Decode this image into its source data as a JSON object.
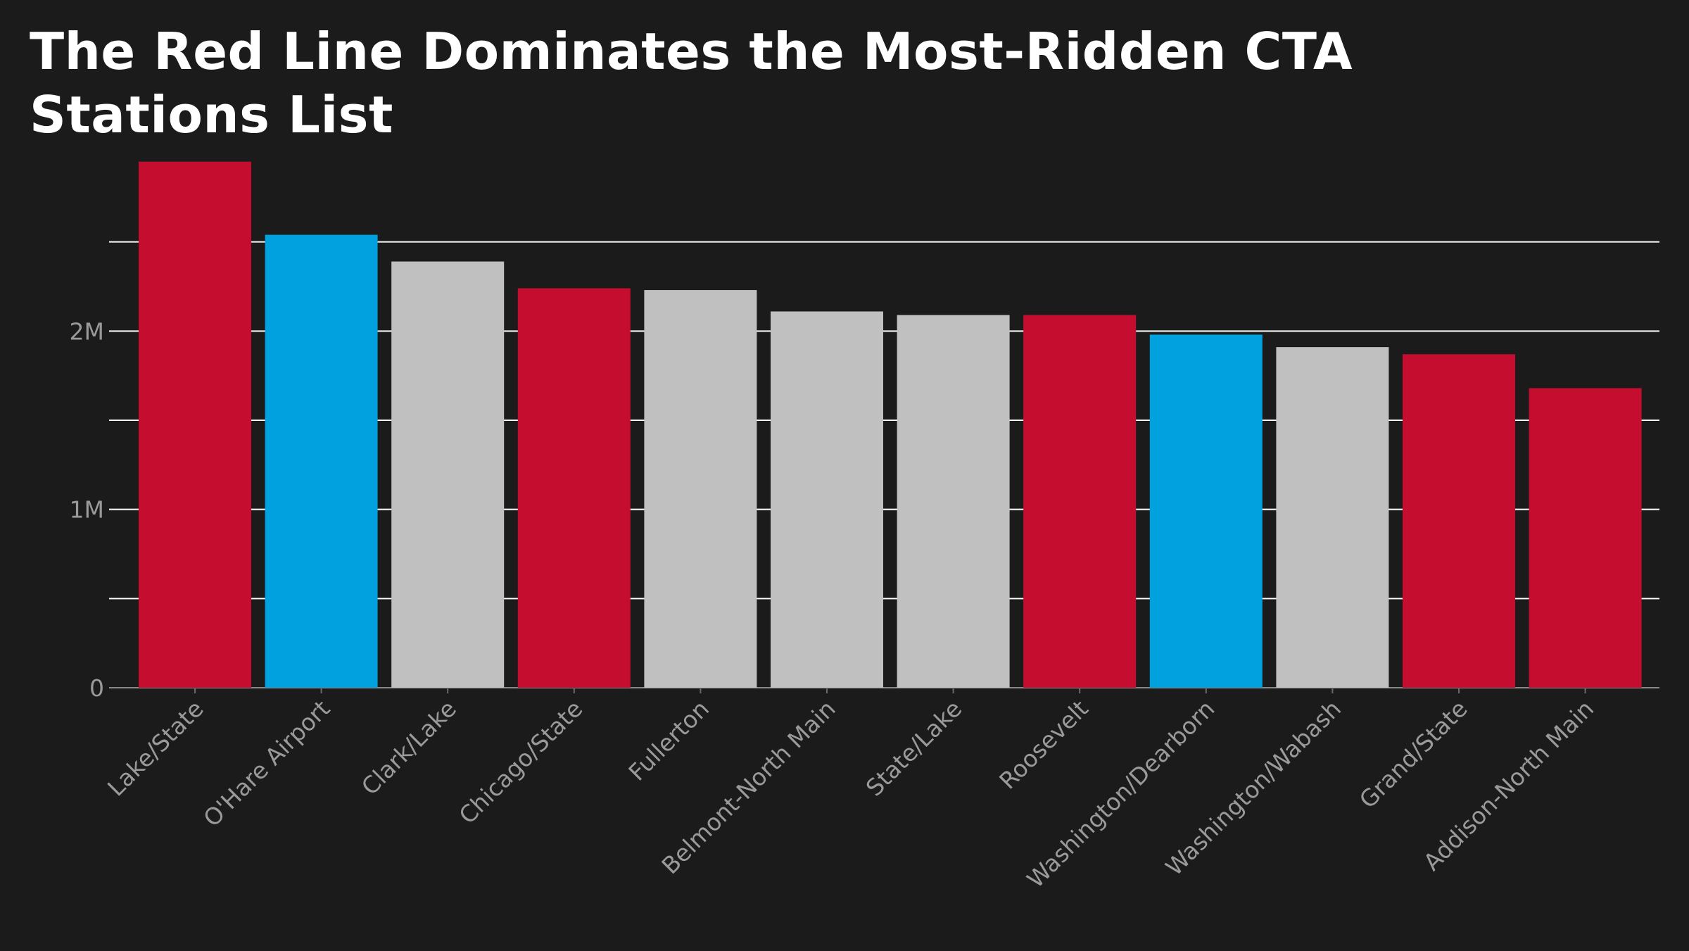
{
  "chart_data": {
    "type": "bar",
    "title": "The Red Line Dominates the Most-Ridden CTA Stations List",
    "xlabel": "",
    "ylabel": "",
    "categories": [
      "Lake/State",
      "O'Hare Airport",
      "Clark/Lake",
      "Chicago/State",
      "Fullerton",
      "Belmont-North Main",
      "State/Lake",
      "Roosevelt",
      "Washington/Dearborn",
      "Washington/Wabash",
      "Grand/State",
      "Addison-North Main"
    ],
    "values": [
      2950000,
      2540000,
      2390000,
      2240000,
      2230000,
      2110000,
      2090000,
      2090000,
      1980000,
      1910000,
      1870000,
      1680000
    ],
    "bar_colors": [
      "#c50d30",
      "#00a1de",
      "#c0c0c0",
      "#c50d30",
      "#c0c0c0",
      "#c0c0c0",
      "#c0c0c0",
      "#c50d30",
      "#00a1de",
      "#c0c0c0",
      "#c50d30",
      "#c50d30"
    ],
    "ylim": [
      0,
      3000000
    ],
    "yticks": [
      {
        "value": 0,
        "label": "0"
      },
      {
        "value": 1000000,
        "label": "1M"
      },
      {
        "value": 2000000,
        "label": "2M"
      }
    ],
    "grid_values": [
      500000,
      1000000,
      1500000,
      2000000,
      2500000
    ],
    "grid": true,
    "legend": "none"
  },
  "colors": {
    "background": "#1b1b1b",
    "grid": "#ffffff",
    "axis_text": "#9a9a9a",
    "title": "#ffffff"
  }
}
